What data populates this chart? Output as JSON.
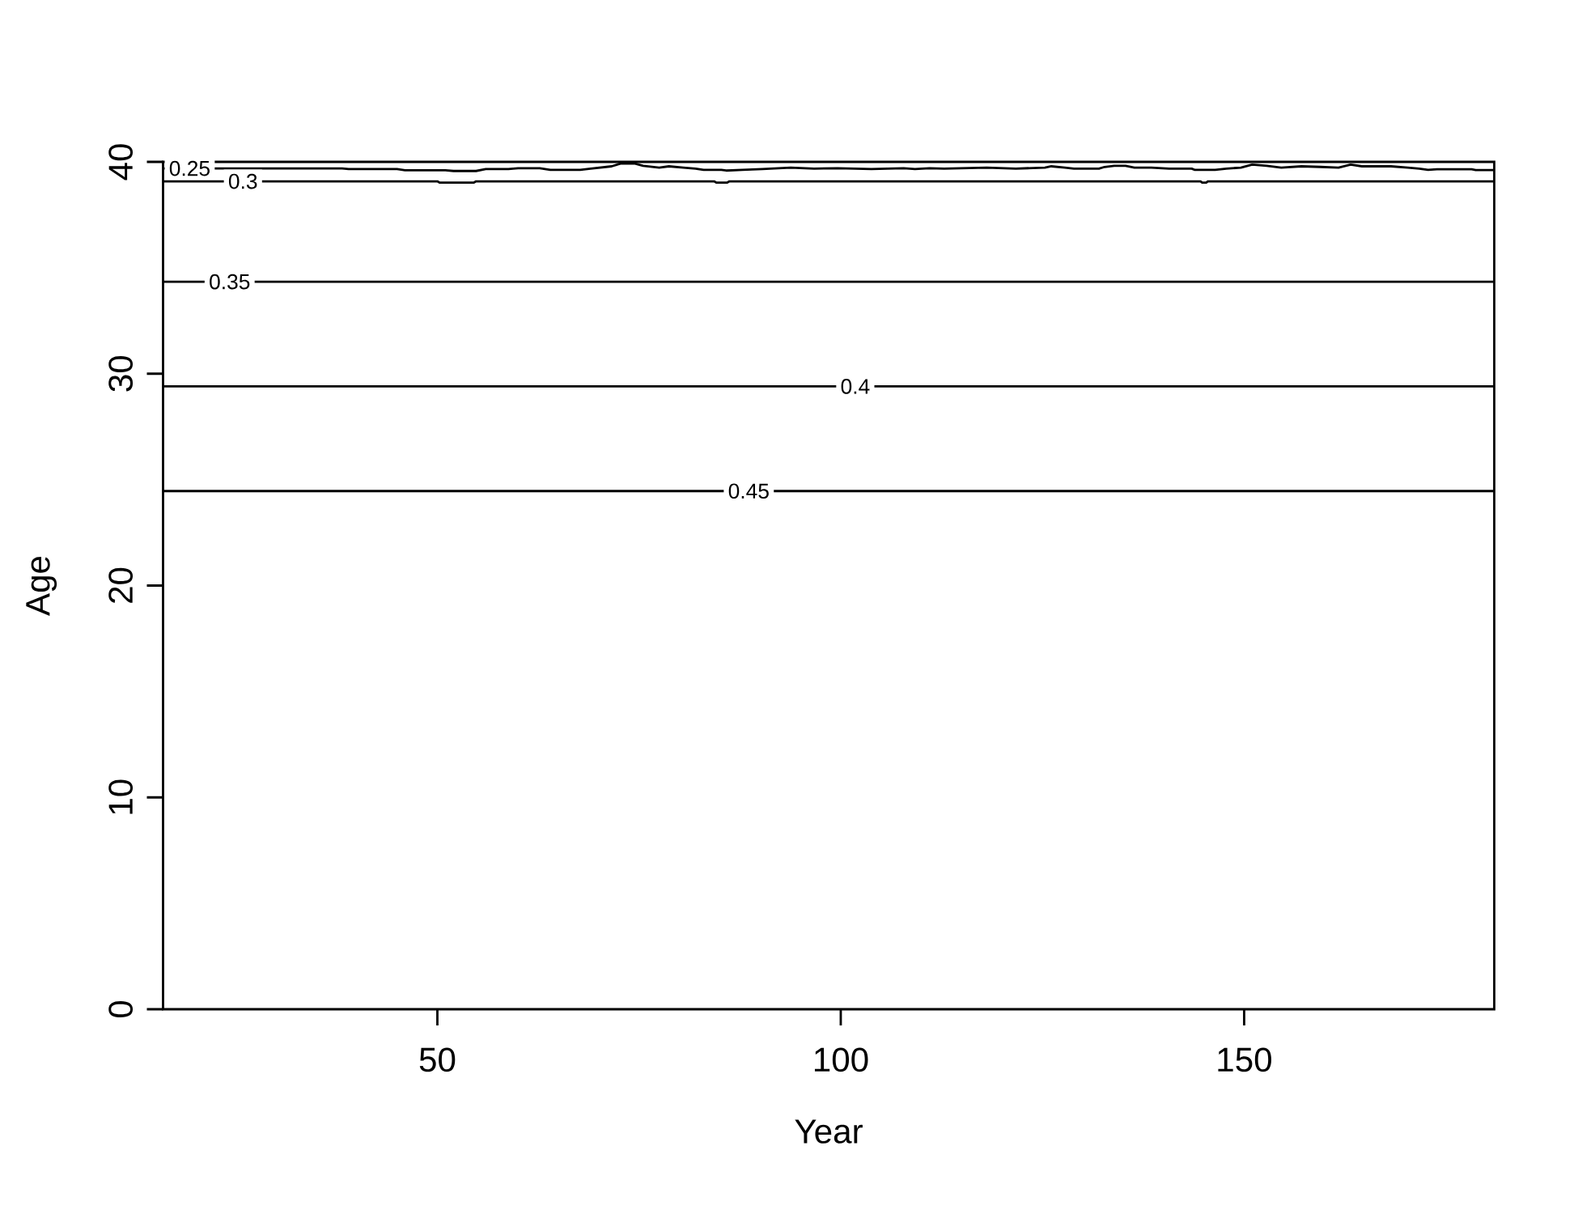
{
  "chart_data": {
    "type": "line",
    "xlabel": "Year",
    "ylabel": "Age",
    "xlim": [
      16,
      181
    ],
    "ylim": [
      0,
      40
    ],
    "xticks": [
      50,
      100,
      150
    ],
    "yticks": [
      0,
      10,
      20,
      30,
      40
    ],
    "series": [
      {
        "name": "0.25",
        "color": "#000000",
        "x": [
          16,
          38.2,
          39,
          45,
          46,
          51,
          52,
          54.8,
          56,
          58.8,
          60,
          62.7,
          64,
          67.7,
          69,
          71.6,
          72.7,
          74.5,
          75.5,
          77.5,
          78.7,
          80.5,
          82,
          83,
          85.2,
          85.8,
          87.8,
          90.3,
          93.8,
          96.7,
          99.6,
          103.8,
          107.8,
          109.2,
          111,
          112.8,
          118.1,
          121.7,
          125.3,
          126.1,
          127.8,
          128.9,
          132,
          132.7,
          133.9,
          135.3,
          136.4,
          138.5,
          140.7,
          143.5,
          143.9,
          146.4,
          147.8,
          149.6,
          151,
          152.8,
          154.6,
          157.1,
          159.5,
          161.7,
          163.2,
          164.6,
          168.2,
          170.3,
          171.7,
          172.8,
          173.9,
          178.2,
          178.7,
          181
        ],
        "values": [
          39.69,
          39.69,
          39.66,
          39.66,
          39.6,
          39.6,
          39.57,
          39.57,
          39.66,
          39.66,
          39.7,
          39.7,
          39.62,
          39.62,
          39.68,
          39.79,
          39.92,
          39.92,
          39.81,
          39.73,
          39.79,
          39.73,
          39.68,
          39.62,
          39.62,
          39.59,
          39.62,
          39.66,
          39.73,
          39.68,
          39.7,
          39.66,
          39.7,
          39.66,
          39.7,
          39.68,
          39.73,
          39.68,
          39.73,
          39.79,
          39.73,
          39.68,
          39.68,
          39.76,
          39.81,
          39.81,
          39.73,
          39.73,
          39.68,
          39.68,
          39.62,
          39.62,
          39.68,
          39.73,
          39.87,
          39.81,
          39.73,
          39.79,
          39.76,
          39.73,
          39.87,
          39.79,
          39.79,
          39.73,
          39.68,
          39.62,
          39.65,
          39.65,
          39.61,
          39.61
        ]
      },
      {
        "name": "0.3",
        "color": "#000000",
        "x": [
          16,
          50,
          50.3,
          54.5,
          54.8,
          84.3,
          84.6,
          85.9,
          86.2,
          144.6,
          144.8,
          145.3,
          145.5,
          181
        ],
        "values": [
          39.08,
          39.08,
          39.02,
          39.02,
          39.08,
          39.08,
          39.02,
          39.02,
          39.08,
          39.08,
          39.02,
          39.02,
          39.08,
          39.08
        ]
      },
      {
        "name": "0.35",
        "color": "#000000",
        "x": [
          16,
          181
        ],
        "values": [
          34.34,
          34.34
        ]
      },
      {
        "name": "0.4",
        "color": "#000000",
        "x": [
          16,
          181
        ],
        "values": [
          29.4,
          29.4
        ]
      },
      {
        "name": "0.45",
        "color": "#000000",
        "x": [
          16,
          181
        ],
        "values": [
          24.46,
          24.46
        ]
      }
    ]
  }
}
